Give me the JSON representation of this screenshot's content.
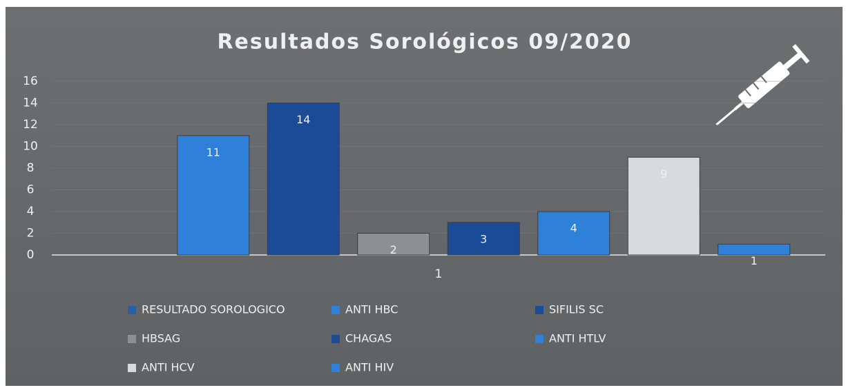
{
  "chart_data": {
    "type": "bar",
    "title": "Resultados Sorológicos 09/2020",
    "categories": [
      "1"
    ],
    "series": [
      {
        "name": "RESULTADO SOROLOGICO",
        "color": "#2a5fa8",
        "values": [
          null
        ]
      },
      {
        "name": "ANTI HBC",
        "color": "#2f80d8",
        "values": [
          11
        ]
      },
      {
        "name": "SIFILIS SC",
        "color": "#1b4b96",
        "values": [
          14
        ]
      },
      {
        "name": "HBSAG",
        "color": "#8e8f90",
        "values": [
          2
        ]
      },
      {
        "name": "CHAGAS",
        "color": "#1b4b96",
        "values": [
          3
        ]
      },
      {
        "name": "ANTI HTLV",
        "color": "#2f80d8",
        "values": [
          4
        ]
      },
      {
        "name": "ANTI HCV",
        "color": "#d9dadb",
        "values": [
          9
        ]
      },
      {
        "name": "ANTI HIV",
        "color": "#2f80d8",
        "values": [
          1
        ]
      }
    ],
    "ylim": [
      0,
      16
    ],
    "yticks": [
      0,
      2,
      4,
      6,
      8,
      10,
      12,
      14,
      16
    ],
    "grid": true
  }
}
